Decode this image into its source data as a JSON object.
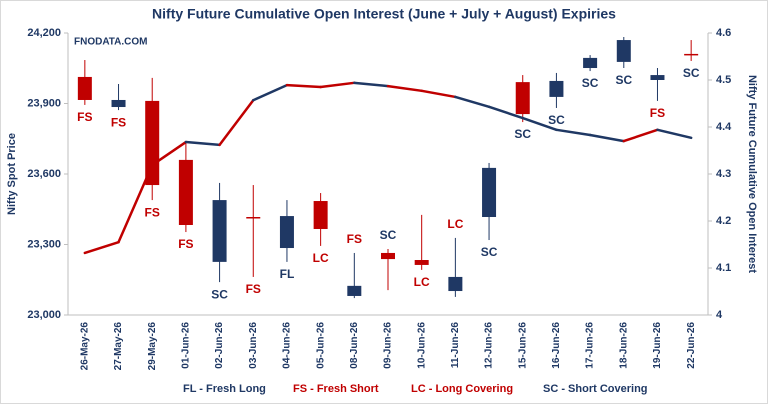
{
  "chart_data": {
    "type": "candlestick",
    "title": "Nifty Future Cumulative Open Interest (June + July + August) Expiries",
    "watermark": "FNODATA.COM",
    "y_label": "Nifty Spot Price",
    "y2_label": "Nifty Future Cumulative Open Interest",
    "categories": [
      "26-May-26",
      "27-May-26",
      "29-May-26",
      "01-Jun-26",
      "02-Jun-26",
      "03-Jun-26",
      "04-Jun-26",
      "05-Jun-26",
      "08-Jun-26",
      "09-Jun-26",
      "10-Jun-26",
      "11-Jun-26",
      "12-Jun-26",
      "15-Jun-26",
      "16-Jun-26",
      "17-Jun-26",
      "18-Jun-26",
      "19-Jun-26",
      "22-Jun-26"
    ],
    "ohlc": {
      "up_color": "#1f3864",
      "down_color": "#c00000",
      "open": [
        24013,
        23885,
        23911,
        23660,
        23226,
        23417,
        23285,
        23485,
        23081,
        23264,
        23234,
        23102,
        23417,
        23991,
        23928,
        24051,
        24077,
        24000,
        24111
      ],
      "high": [
        24085,
        23983,
        24009,
        23732,
        23562,
        23553,
        23489,
        23519,
        23264,
        23281,
        23426,
        23328,
        23647,
        24021,
        24030,
        24106,
        24183,
        24051,
        24170
      ],
      "low": [
        23894,
        23872,
        23489,
        23353,
        23140,
        23162,
        23226,
        23294,
        23072,
        23106,
        23192,
        23077,
        23319,
        23821,
        23881,
        24038,
        24051,
        23911,
        24081
      ],
      "close": [
        23915,
        23915,
        23553,
        23383,
        23489,
        23411,
        23421,
        23366,
        23124,
        23238,
        23213,
        23162,
        23626,
        23855,
        23996,
        24094,
        24170,
        24021,
        24107
      ]
    },
    "oi_line": {
      "axis": "y2",
      "values": [
        4.132,
        4.155,
        4.319,
        4.368,
        4.362,
        4.457,
        4.489,
        4.485,
        4.494,
        4.487,
        4.477,
        4.464,
        4.443,
        4.419,
        4.394,
        4.383,
        4.37,
        4.394,
        4.377
      ]
    },
    "labels": [
      "FS",
      "FS",
      "FS",
      "FS",
      "SC",
      "FS",
      "FL",
      "LC",
      "FS",
      "SC",
      "LC",
      "LC",
      "SC",
      "SC",
      "SC",
      "SC",
      "SC",
      "FS",
      "SC"
    ],
    "signals": [
      {
        "code": "FL",
        "name": "FL - Fresh Long",
        "color": "#1f3864"
      },
      {
        "code": "FS",
        "name": "FS - Fresh Short",
        "color": "#c00000"
      },
      {
        "code": "LC",
        "name": "LC - Long Covering",
        "color": "#c00000"
      },
      {
        "code": "SC",
        "name": "SC - Short Covering",
        "color": "#1f3864"
      }
    ],
    "ylim": [
      23000,
      24200
    ],
    "yticks": [
      {
        "value": 23000,
        "label": "23,000"
      },
      {
        "value": 23300,
        "label": "23,300"
      },
      {
        "value": 23600,
        "label": "23,600"
      },
      {
        "value": 23900,
        "label": "23,900"
      },
      {
        "value": 24200,
        "label": "24,200"
      }
    ],
    "y2lim": [
      4,
      4.6
    ],
    "y2ticks": [
      4,
      4.1,
      4.2,
      4.3,
      4.4,
      4.5,
      4.6
    ],
    "grid": false
  }
}
